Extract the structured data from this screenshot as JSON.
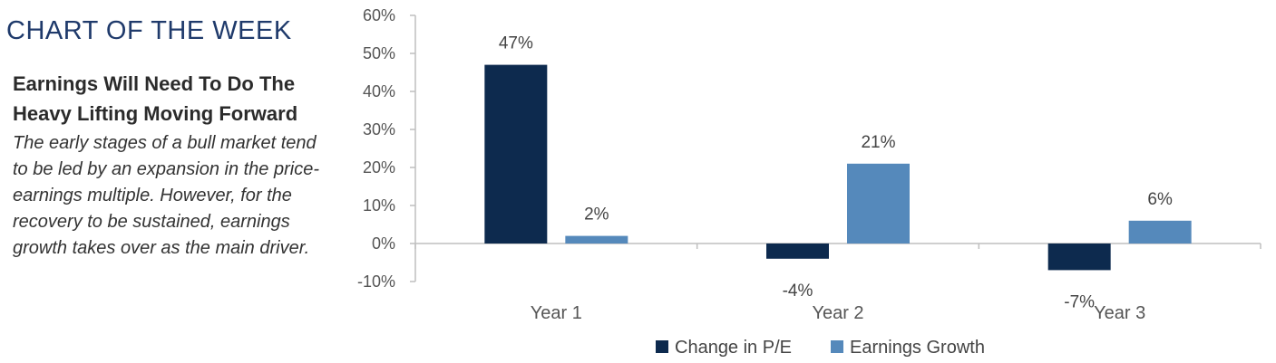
{
  "page": {
    "kicker": "CHART OF THE WEEK",
    "headline": "Earnings Will Need To Do The Heavy Lifting Moving Forward",
    "body": "The early stages of a bull market tend to be led by an expansion in the price-earnings multiple. However, for the recovery to be sustained, earnings growth takes over as the main driver."
  },
  "chart_data": {
    "type": "bar",
    "categories": [
      "Year 1",
      "Year 2",
      "Year 3"
    ],
    "series": [
      {
        "name": "Change in P/E",
        "values": [
          47,
          -4,
          -7
        ],
        "labels": [
          "47%",
          "-4%",
          "-7%"
        ],
        "color": "#0d2a4e"
      },
      {
        "name": "Earnings Growth",
        "values": [
          2,
          21,
          6
        ],
        "labels": [
          "2%",
          "21%",
          "6%"
        ],
        "color": "#5589bb"
      }
    ],
    "ylim": [
      -10,
      60
    ],
    "yticks": [
      -10,
      0,
      10,
      20,
      30,
      40,
      50,
      60
    ],
    "ytick_labels": [
      "-10%",
      "0%",
      "10%",
      "20%",
      "30%",
      "40%",
      "50%",
      "60%"
    ],
    "grid": false,
    "legend": "bottom",
    "axis_color": "#bfbfbf"
  }
}
